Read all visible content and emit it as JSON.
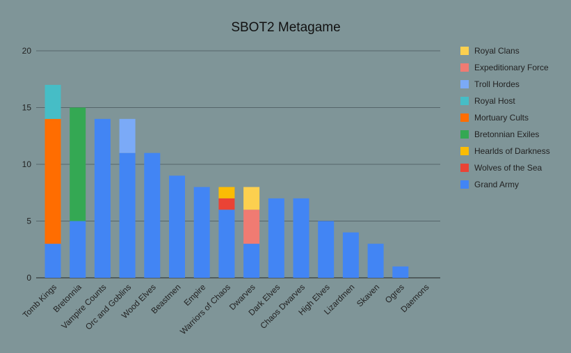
{
  "chart_data": {
    "type": "bar",
    "stacked": true,
    "title": "SBOT2 Metagame",
    "xlabel": "",
    "ylabel": "",
    "ylim": [
      0,
      20
    ],
    "yticks": [
      "0",
      "5",
      "10",
      "15",
      "20"
    ],
    "grid": true,
    "legend_position": "right",
    "categories": [
      "Tomb Kings",
      "Bretonnia",
      "Vampire Counts",
      "Orc and Goblins",
      "Wood Elves",
      "Beastmen",
      "Empire",
      "Warriors of Chaos",
      "Dwarves",
      "Dark Elves",
      "Chaos Dwarves",
      "High Elves",
      "Lizardmen",
      "Skaven",
      "Ogres",
      "Daemons"
    ],
    "series": [
      {
        "name": "Grand Army",
        "color": "#4285f4",
        "values": [
          3,
          5,
          14,
          11,
          11,
          9,
          8,
          6,
          3,
          7,
          7,
          5,
          4,
          3,
          1,
          0
        ]
      },
      {
        "name": "Wolves of the Sea",
        "color": "#ea4335",
        "values": [
          0,
          0,
          0,
          0,
          0,
          0,
          0,
          1,
          0,
          0,
          0,
          0,
          0,
          0,
          0,
          0
        ]
      },
      {
        "name": "Hearlds of Darkness",
        "color": "#fbbc04",
        "values": [
          0,
          0,
          0,
          0,
          0,
          0,
          0,
          1,
          0,
          0,
          0,
          0,
          0,
          0,
          0,
          0
        ]
      },
      {
        "name": "Bretonnian Exiles",
        "color": "#34a853",
        "values": [
          0,
          10,
          0,
          0,
          0,
          0,
          0,
          0,
          0,
          0,
          0,
          0,
          0,
          0,
          0,
          0
        ]
      },
      {
        "name": "Mortuary Cults",
        "color": "#ff6d01",
        "values": [
          11,
          0,
          0,
          0,
          0,
          0,
          0,
          0,
          0,
          0,
          0,
          0,
          0,
          0,
          0,
          0
        ]
      },
      {
        "name": "Royal Host",
        "color": "#46bdc6",
        "values": [
          3,
          0,
          0,
          0,
          0,
          0,
          0,
          0,
          0,
          0,
          0,
          0,
          0,
          0,
          0,
          0
        ]
      },
      {
        "name": "Troll Hordes",
        "color": "#7baaf7",
        "values": [
          0,
          0,
          0,
          3,
          0,
          0,
          0,
          0,
          0,
          0,
          0,
          0,
          0,
          0,
          0,
          0
        ]
      },
      {
        "name": "Expeditionary Force",
        "color": "#f07b72",
        "values": [
          0,
          0,
          0,
          0,
          0,
          0,
          0,
          0,
          3,
          0,
          0,
          0,
          0,
          0,
          0,
          0
        ]
      },
      {
        "name": "Royal Clans",
        "color": "#fcd04f",
        "values": [
          0,
          0,
          0,
          0,
          0,
          0,
          0,
          0,
          2,
          0,
          0,
          0,
          0,
          0,
          0,
          0
        ]
      }
    ]
  }
}
